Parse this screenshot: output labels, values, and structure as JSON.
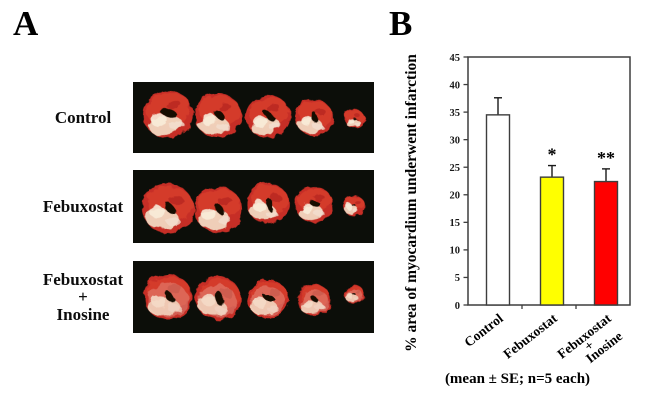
{
  "panelA": {
    "label": "A",
    "rows": [
      {
        "label": "Control",
        "image": "heart-cross-sections-photo",
        "sections": 5
      },
      {
        "label": "Febuxostat",
        "image": "heart-cross-sections-photo",
        "sections": 5
      },
      {
        "label": "Febuxostat\n+\nInosine",
        "image": "heart-cross-sections-photo",
        "sections": 5
      }
    ]
  },
  "panelB": {
    "label": "B",
    "caption": "(mean ± SE; n=5 each)"
  },
  "chart_data": {
    "type": "bar",
    "categories": [
      "Control",
      "Febuxostat",
      "Febuxostat\n+\nInosine"
    ],
    "values": [
      34.5,
      23.2,
      22.4
    ],
    "errors": [
      3.1,
      2.1,
      2.3
    ],
    "significance": [
      "",
      "*",
      "**"
    ],
    "bar_colors": [
      "#ffffff",
      "#ffff00",
      "#ff0000"
    ],
    "title": "",
    "xlabel": "",
    "ylabel": "% area of myocardium underwent infarction",
    "ylim": [
      0,
      45
    ],
    "ytick_step": 5,
    "grid": false,
    "legend": "none",
    "error_direction": "up",
    "note": "(mean ± SE; n=5 each)"
  },
  "colors": {
    "axis": "#3d3d3d",
    "bar_border": "#3d3d3d",
    "error_bar": "#1a1a1a",
    "tick_text": "#1a1a1a",
    "photo_background": "#0c0e09",
    "heart_red": "#c62e25",
    "heart_pale": "#f1d7c0"
  }
}
